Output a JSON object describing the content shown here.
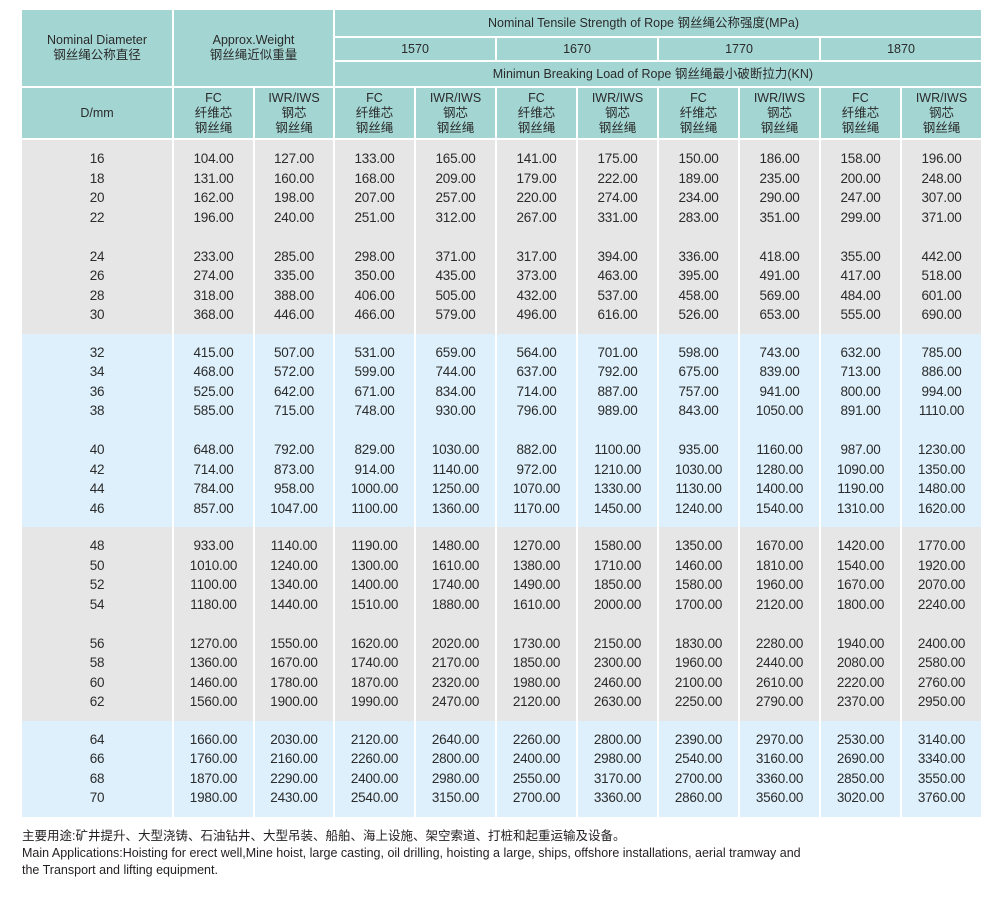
{
  "header": {
    "nominal_diameter_en": "Nominal Diameter",
    "nominal_diameter_cn": "钢丝绳公称直径",
    "approx_weight_en": "Approx.Weight",
    "approx_weight_cn": "钢丝绳近似重量",
    "tensile_title": "Nominal Tensile Strength of Rope  钢丝绳公称强度(MPa)",
    "grades": [
      "1570",
      "1670",
      "1770",
      "1870"
    ],
    "breaking_title": "Minimun Breaking Load of Rope  钢丝绳最小破断拉力(KN)",
    "d_mm": "D/mm",
    "fc": [
      "FC",
      "纤维芯",
      "钢丝绳"
    ],
    "iwr": [
      "IWR/IWS",
      "钢芯",
      "钢丝绳"
    ]
  },
  "colors": {
    "header": "#a3d6d3",
    "band_gray": "#e6e6e6",
    "band_blue": "#ddf0fb"
  },
  "bands": [
    {
      "color": "gray",
      "groups": [
        [
          [
            "16",
            "104.00",
            "127.00",
            "133.00",
            "165.00",
            "141.00",
            "175.00",
            "150.00",
            "186.00",
            "158.00",
            "196.00"
          ],
          [
            "18",
            "131.00",
            "160.00",
            "168.00",
            "209.00",
            "179.00",
            "222.00",
            "189.00",
            "235.00",
            "200.00",
            "248.00"
          ],
          [
            "20",
            "162.00",
            "198.00",
            "207.00",
            "257.00",
            "220.00",
            "274.00",
            "234.00",
            "290.00",
            "247.00",
            "307.00"
          ],
          [
            "22",
            "196.00",
            "240.00",
            "251.00",
            "312.00",
            "267.00",
            "331.00",
            "283.00",
            "351.00",
            "299.00",
            "371.00"
          ]
        ],
        [
          [
            "24",
            "233.00",
            "285.00",
            "298.00",
            "371.00",
            "317.00",
            "394.00",
            "336.00",
            "418.00",
            "355.00",
            "442.00"
          ],
          [
            "26",
            "274.00",
            "335.00",
            "350.00",
            "435.00",
            "373.00",
            "463.00",
            "395.00",
            "491.00",
            "417.00",
            "518.00"
          ],
          [
            "28",
            "318.00",
            "388.00",
            "406.00",
            "505.00",
            "432.00",
            "537.00",
            "458.00",
            "569.00",
            "484.00",
            "601.00"
          ],
          [
            "30",
            "368.00",
            "446.00",
            "466.00",
            "579.00",
            "496.00",
            "616.00",
            "526.00",
            "653.00",
            "555.00",
            "690.00"
          ]
        ]
      ]
    },
    {
      "color": "blue",
      "groups": [
        [
          [
            "32",
            "415.00",
            "507.00",
            "531.00",
            "659.00",
            "564.00",
            "701.00",
            "598.00",
            "743.00",
            "632.00",
            "785.00"
          ],
          [
            "34",
            "468.00",
            "572.00",
            "599.00",
            "744.00",
            "637.00",
            "792.00",
            "675.00",
            "839.00",
            "713.00",
            "886.00"
          ],
          [
            "36",
            "525.00",
            "642.00",
            "671.00",
            "834.00",
            "714.00",
            "887.00",
            "757.00",
            "941.00",
            "800.00",
            "994.00"
          ],
          [
            "38",
            "585.00",
            "715.00",
            "748.00",
            "930.00",
            "796.00",
            "989.00",
            "843.00",
            "1050.00",
            "891.00",
            "1110.00"
          ]
        ],
        [
          [
            "40",
            "648.00",
            "792.00",
            "829.00",
            "1030.00",
            "882.00",
            "1100.00",
            "935.00",
            "1160.00",
            "987.00",
            "1230.00"
          ],
          [
            "42",
            "714.00",
            "873.00",
            "914.00",
            "1140.00",
            "972.00",
            "1210.00",
            "1030.00",
            "1280.00",
            "1090.00",
            "1350.00"
          ],
          [
            "44",
            "784.00",
            "958.00",
            "1000.00",
            "1250.00",
            "1070.00",
            "1330.00",
            "1130.00",
            "1400.00",
            "1190.00",
            "1480.00"
          ],
          [
            "46",
            "857.00",
            "1047.00",
            "1100.00",
            "1360.00",
            "1170.00",
            "1450.00",
            "1240.00",
            "1540.00",
            "1310.00",
            "1620.00"
          ]
        ]
      ]
    },
    {
      "color": "gray",
      "groups": [
        [
          [
            "48",
            "933.00",
            "1140.00",
            "1190.00",
            "1480.00",
            "1270.00",
            "1580.00",
            "1350.00",
            "1670.00",
            "1420.00",
            "1770.00"
          ],
          [
            "50",
            "1010.00",
            "1240.00",
            "1300.00",
            "1610.00",
            "1380.00",
            "1710.00",
            "1460.00",
            "1810.00",
            "1540.00",
            "1920.00"
          ],
          [
            "52",
            "1100.00",
            "1340.00",
            "1400.00",
            "1740.00",
            "1490.00",
            "1850.00",
            "1580.00",
            "1960.00",
            "1670.00",
            "2070.00"
          ],
          [
            "54",
            "1180.00",
            "1440.00",
            "1510.00",
            "1880.00",
            "1610.00",
            "2000.00",
            "1700.00",
            "2120.00",
            "1800.00",
            "2240.00"
          ]
        ],
        [
          [
            "56",
            "1270.00",
            "1550.00",
            "1620.00",
            "2020.00",
            "1730.00",
            "2150.00",
            "1830.00",
            "2280.00",
            "1940.00",
            "2400.00"
          ],
          [
            "58",
            "1360.00",
            "1670.00",
            "1740.00",
            "2170.00",
            "1850.00",
            "2300.00",
            "1960.00",
            "2440.00",
            "2080.00",
            "2580.00"
          ],
          [
            "60",
            "1460.00",
            "1780.00",
            "1870.00",
            "2320.00",
            "1980.00",
            "2460.00",
            "2100.00",
            "2610.00",
            "2220.00",
            "2760.00"
          ],
          [
            "62",
            "1560.00",
            "1900.00",
            "1990.00",
            "2470.00",
            "2120.00",
            "2630.00",
            "2250.00",
            "2790.00",
            "2370.00",
            "2950.00"
          ]
        ]
      ]
    },
    {
      "color": "blue",
      "groups": [
        [
          [
            "64",
            "1660.00",
            "2030.00",
            "2120.00",
            "2640.00",
            "2260.00",
            "2800.00",
            "2390.00",
            "2970.00",
            "2530.00",
            "3140.00"
          ],
          [
            "66",
            "1760.00",
            "2160.00",
            "2260.00",
            "2800.00",
            "2400.00",
            "2980.00",
            "2540.00",
            "3160.00",
            "2690.00",
            "3340.00"
          ],
          [
            "68",
            "1870.00",
            "2290.00",
            "2400.00",
            "2980.00",
            "2550.00",
            "3170.00",
            "2700.00",
            "3360.00",
            "2850.00",
            "3550.00"
          ],
          [
            "70",
            "1980.00",
            "2430.00",
            "2540.00",
            "3150.00",
            "2700.00",
            "3360.00",
            "2860.00",
            "3560.00",
            "3020.00",
            "3760.00"
          ]
        ]
      ]
    }
  ],
  "notes": {
    "cn": "主要用途:矿井提升、大型浇铸、石油钻井、大型吊装、船舶、海上设施、架空索道、打桩和起重运输及设备。",
    "en_line1": "Main Applications:Hoisting for erect well,Mine hoist, large casting, oil drilling, hoisting a large, ships, offshore installations, aerial tramway and",
    "en_line2": "the Transport and lifting equipment."
  }
}
